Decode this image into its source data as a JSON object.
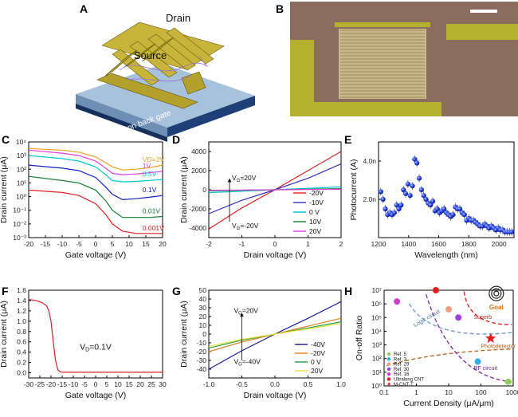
{
  "panels": {
    "A": {
      "label": "A",
      "text_drain": "Drain",
      "text_source": "Source",
      "text_gate": "Silicon back gate"
    },
    "B": {
      "label": "B"
    }
  },
  "chart_data": [
    {
      "id": "C",
      "type": "line",
      "label": "C",
      "xlabel": "Gate voltage (V)",
      "ylabel": "Drain current (μA)",
      "xlim": [
        -20,
        20
      ],
      "xticks": [
        -20,
        -15,
        -10,
        -5,
        0,
        5,
        10,
        15,
        20
      ],
      "ylog": true,
      "ylim_exp": [
        -3,
        4
      ],
      "yticks": [
        "10⁻³",
        "10⁻²",
        "10⁻¹",
        "10⁰",
        "10¹",
        "10²",
        "10³",
        "10⁴"
      ],
      "series": [
        {
          "name": "VD=2V",
          "color": "#f0a020",
          "x": [
            -20,
            -10,
            -5,
            0,
            3,
            5,
            8,
            12,
            16,
            20
          ],
          "y": [
            3300,
            2500,
            1800,
            800,
            300,
            150,
            90,
            100,
            130,
            200
          ]
        },
        {
          "name": "1V",
          "color": "#e040e0",
          "x": [
            -20,
            -10,
            -5,
            0,
            3,
            5,
            8,
            12,
            16,
            20
          ],
          "y": [
            2500,
            1500,
            1000,
            400,
            120,
            50,
            40,
            45,
            55,
            70
          ]
        },
        {
          "name": "0.5V",
          "color": "#00c8d0",
          "x": [
            -20,
            -10,
            -5,
            0,
            3,
            5,
            8,
            12,
            16,
            20
          ],
          "y": [
            1000,
            600,
            400,
            150,
            40,
            15,
            12,
            13,
            15,
            18
          ]
        },
        {
          "name": "0.1V",
          "color": "#1020c0",
          "x": [
            -20,
            -10,
            -5,
            0,
            3,
            5,
            8,
            12,
            16,
            20
          ],
          "y": [
            200,
            120,
            80,
            25,
            5,
            1.5,
            0.6,
            0.7,
            0.9,
            1.2
          ]
        },
        {
          "name": "0.01V",
          "color": "#108030",
          "x": [
            -20,
            -10,
            -5,
            0,
            3,
            5,
            8,
            12,
            16,
            20
          ],
          "y": [
            30,
            15,
            10,
            3,
            0.5,
            0.1,
            0.03,
            0.03,
            0.03,
            0.035
          ]
        },
        {
          "name": "0.001V",
          "color": "#e02020",
          "x": [
            -20,
            -10,
            -5,
            0,
            3,
            5,
            8,
            12,
            16,
            20
          ],
          "y": [
            3,
            2,
            1.2,
            0.3,
            0.05,
            0.01,
            0.003,
            0.002,
            0.002,
            0.002
          ]
        }
      ]
    },
    {
      "id": "D",
      "type": "line",
      "label": "D",
      "xlabel": "Drain voltage (V)",
      "ylabel": "Drain current (μA)",
      "xlim": [
        -2,
        2
      ],
      "xticks": [
        -2,
        -1,
        0,
        1,
        2
      ],
      "ylim": [
        -5000,
        5000
      ],
      "yticks": [
        -4000,
        -2000,
        0,
        2000,
        4000
      ],
      "arrow_top": "V",
      "arrow_top_sub": "G",
      "arrow_top_val": "=20V",
      "arrow_bot": "V",
      "arrow_bot_sub": "G",
      "arrow_bot_val": "=-20V",
      "series": [
        {
          "name": "-20V",
          "color": "#e02020",
          "x": [
            -2,
            -1,
            0,
            1,
            2
          ],
          "y": [
            -4100,
            -1900,
            0,
            2000,
            4000
          ]
        },
        {
          "name": "-10V",
          "color": "#3030c0",
          "x": [
            -2,
            -1,
            0,
            1,
            2
          ],
          "y": [
            -2500,
            -1100,
            0,
            1200,
            2700
          ]
        },
        {
          "name": "0 V",
          "color": "#00c0d0",
          "x": [
            -2,
            -1,
            0,
            1,
            2
          ],
          "y": [
            -300,
            -150,
            0,
            150,
            300
          ]
        },
        {
          "name": "10V",
          "color": "#108030",
          "x": [
            -2,
            -1,
            0,
            1,
            2
          ],
          "y": [
            -120,
            -60,
            0,
            60,
            120
          ]
        },
        {
          "name": "20V",
          "color": "#e040e0",
          "x": [
            -2,
            -1,
            0,
            1,
            2
          ],
          "y": [
            -50,
            -25,
            0,
            25,
            50
          ]
        }
      ]
    },
    {
      "id": "E",
      "type": "scatter",
      "label": "E",
      "xlabel": "Wavelength (nm)",
      "ylabel": "Photocurrent (A)",
      "xlim": [
        1200,
        2100
      ],
      "xticks": [
        1200,
        1400,
        1600,
        1800,
        2000
      ],
      "ylim": [
        0,
        5
      ],
      "ytick_vals": [
        2,
        4
      ],
      "ytick_labels": [
        "2.0n",
        "4.0n"
      ],
      "color": "#2040e0",
      "x": [
        1215,
        1230,
        1245,
        1260,
        1275,
        1290,
        1305,
        1320,
        1335,
        1350,
        1365,
        1380,
        1395,
        1410,
        1425,
        1440,
        1455,
        1470,
        1485,
        1500,
        1515,
        1530,
        1545,
        1560,
        1575,
        1590,
        1605,
        1620,
        1635,
        1650,
        1665,
        1680,
        1695,
        1710,
        1725,
        1740,
        1755,
        1770,
        1785,
        1800,
        1815,
        1830,
        1845,
        1860,
        1875,
        1890,
        1905,
        1920,
        1935,
        1950,
        1965,
        1980,
        1995,
        2010,
        2025,
        2040,
        2055,
        2070,
        2085
      ],
      "y": [
        2.4,
        2.0,
        1.5,
        1.2,
        1.3,
        1.2,
        1.3,
        1.7,
        1.5,
        1.7,
        2.5,
        2.3,
        2.8,
        2.2,
        2.7,
        4.1,
        3.9,
        3.1,
        2.5,
        2.2,
        2.0,
        1.8,
        1.7,
        1.9,
        1.4,
        1.5,
        1.3,
        1.4,
        1.5,
        1.3,
        1.2,
        1.1,
        1.2,
        1.6,
        1.5,
        1.5,
        1.3,
        1.2,
        0.9,
        1.0,
        0.9,
        0.9,
        0.8,
        0.7,
        0.6,
        0.6,
        0.7,
        0.6,
        0.5,
        0.6,
        0.5,
        0.4,
        0.5,
        0.4,
        0.4,
        0.3,
        0.3,
        0.3,
        0.3
      ]
    },
    {
      "id": "F",
      "type": "line",
      "label": "F",
      "xlabel": "Gate voltage (V)",
      "ylabel": "Drain current (μA)",
      "xlim": [
        -30,
        30
      ],
      "xticks": [
        -30,
        -25,
        -20,
        -15,
        -10,
        -5,
        0,
        5,
        10,
        15,
        20,
        25,
        30
      ],
      "ylim": [
        -0.1,
        1.6
      ],
      "yticks": [
        0.0,
        0.2,
        0.4,
        0.6,
        0.8,
        1.0,
        1.2,
        1.4,
        1.6
      ],
      "annotation": "V",
      "annotation_sub": "D",
      "annotation_val": "=0.1V",
      "series": [
        {
          "name": "",
          "color": "#d42020",
          "x": [
            -30,
            -28,
            -26,
            -24,
            -22,
            -21,
            -20,
            -19,
            -18,
            -17,
            -16,
            -15,
            30
          ],
          "y": [
            1.42,
            1.41,
            1.39,
            1.36,
            1.3,
            1.2,
            1.0,
            0.6,
            0.25,
            0.06,
            0.02,
            0.01,
            0.01
          ]
        }
      ]
    },
    {
      "id": "G",
      "type": "line",
      "label": "G",
      "xlabel": "Drain voltage (V)",
      "ylabel": "Drain current (μA)",
      "xlim": [
        -1,
        1
      ],
      "xticks": [
        -1.0,
        -0.5,
        0.0,
        0.5,
        1.0
      ],
      "ylim": [
        -50,
        50
      ],
      "yticks": [
        -40,
        -30,
        -20,
        -10,
        0,
        10,
        20,
        30,
        40,
        50
      ],
      "arrow_top": "V",
      "arrow_top_sub": "G",
      "arrow_top_val": "=20V",
      "arrow_bot": "V",
      "arrow_bot_sub": "G",
      "arrow_bot_val": "=-40V",
      "series": [
        {
          "name": "-40V",
          "color": "#1a1a90",
          "x": [
            -1,
            -0.5,
            0,
            0.5,
            1
          ],
          "y": [
            -40,
            -19,
            0,
            18,
            37
          ]
        },
        {
          "name": "-20V",
          "color": "#e08020",
          "x": [
            -1,
            -0.5,
            0,
            0.5,
            1
          ],
          "y": [
            -20,
            -9,
            0,
            9,
            18
          ]
        },
        {
          "name": "0 V",
          "color": "#20a040",
          "x": [
            -1,
            -0.5,
            0,
            0.5,
            1
          ],
          "y": [
            -16,
            -7,
            0,
            7,
            14
          ]
        },
        {
          "name": "20V",
          "color": "#e8e040",
          "x": [
            -1,
            -0.5,
            0,
            0.5,
            1
          ],
          "y": [
            -14,
            -6,
            0,
            6,
            12
          ]
        }
      ]
    },
    {
      "id": "H",
      "type": "scatter",
      "label": "H",
      "xlabel": "Current Density (μA/μm)",
      "ylabel": "On-off Ratio",
      "xlog": true,
      "ylog": true,
      "xlim_exp": [
        -1,
        3
      ],
      "ylim_exp": [
        0,
        7
      ],
      "xtick_labels": [
        "0.1",
        "1",
        "10",
        "100",
        "1000"
      ],
      "ytick_labels": [
        "10⁰",
        "10¹",
        "10²",
        "10³",
        "10⁴",
        "10⁵",
        "10⁶",
        "10⁷"
      ],
      "region_labels": [
        "Logic circuit",
        "Superb",
        "Photodetector",
        "RF circuit",
        "Goal"
      ],
      "points": [
        {
          "name": "Ref. 5",
          "color": "#90d050",
          "x": 700,
          "y": 2
        },
        {
          "name": "Ref. 3",
          "color": "#30b0e0",
          "x": 80,
          "y": 60
        },
        {
          "name": "Ref. 29",
          "color": "#f0a080",
          "x": 10,
          "y": 400000
        },
        {
          "name": "Ref. 30",
          "color": "#a040e0",
          "x": 20,
          "y": 100000
        },
        {
          "name": "Ref. 16",
          "color": "#d040d0",
          "x": 0.25,
          "y": 1500000
        },
        {
          "name": "Ultralong CNT",
          "color": "#e02020",
          "x": 4,
          "y": 10000000
        },
        {
          "name": "M-CNT-T",
          "color": "#e02020",
          "x": 200,
          "y": 3000,
          "marker": "star"
        }
      ]
    }
  ]
}
